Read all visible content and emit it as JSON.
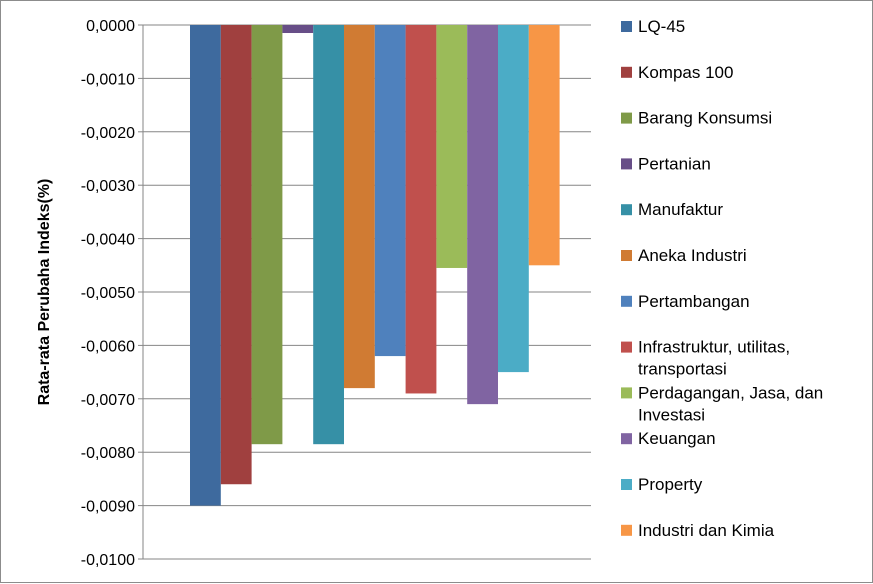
{
  "chart_data": {
    "type": "bar",
    "ylabel": "Rata-rata Perubaha Indeks(%)",
    "xlabel": "",
    "ylim": [
      -0.01,
      0.0
    ],
    "y_ticks": [
      "0,0000",
      "-0,0010",
      "-0,0020",
      "-0,0030",
      "-0,0040",
      "-0,0050",
      "-0,0060",
      "-0,0070",
      "-0,0080",
      "-0,0090",
      "-0,0100"
    ],
    "grid": true,
    "legend_position": "right",
    "series": [
      {
        "name": "LQ-45",
        "value": -0.009,
        "color": "#3E6A9E"
      },
      {
        "name": "Kompas 100",
        "value": -0.0086,
        "color": "#A0403F"
      },
      {
        "name": "Barang Konsumsi",
        "value": -0.00785,
        "color": "#7F9A48"
      },
      {
        "name": "Pertanian",
        "value": -0.00015,
        "color": "#674E87"
      },
      {
        "name": "Manufaktur",
        "value": -0.00785,
        "color": "#3690A6"
      },
      {
        "name": "Aneka Industri",
        "value": -0.0068,
        "color": "#D07B33"
      },
      {
        "name": "Pertambangan",
        "value": -0.0062,
        "color": "#4F81BD"
      },
      {
        "name": "Infrastruktur, utilitas, transportasi",
        "value": -0.0069,
        "color": "#C0504D"
      },
      {
        "name": "Perdagangan, Jasa, dan Investasi",
        "value": -0.00455,
        "color": "#9BBB59"
      },
      {
        "name": "Keuangan",
        "value": -0.0071,
        "color": "#8064A2"
      },
      {
        "name": "Property",
        "value": -0.0065,
        "color": "#4BACC6"
      },
      {
        "name": "Industri dan Kimia",
        "value": -0.0045,
        "color": "#F79646"
      }
    ]
  }
}
